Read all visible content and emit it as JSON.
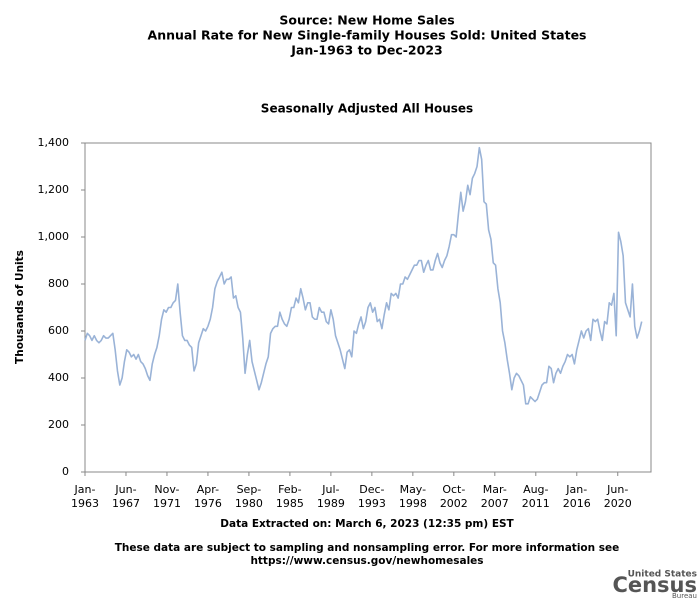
{
  "chart_data": {
    "type": "line",
    "title": [
      "Source: New Home Sales",
      "Annual Rate for New Single-family Houses Sold: United States",
      "Jan-1963 to Dec-2023"
    ],
    "subtitle": "Seasonally Adjusted All Houses",
    "y_label": "Thousands of Units",
    "note": "Data Extracted on: March 6, 2023 (12:35 pm) EST",
    "disclaimer": [
      "These data are subject to sampling and nonsampling error. For more information see",
      "https://www.census.gov/newhomesales"
    ],
    "logo": [
      "United States",
      "Census",
      "Bureau"
    ],
    "xlim": [
      "1963-01",
      "2024-01"
    ],
    "xticks": [
      {
        "value": "1963-01",
        "label": [
          "Jan-",
          "1963"
        ]
      },
      {
        "value": "1967-06",
        "label": [
          "Jun-",
          "1967"
        ]
      },
      {
        "value": "1971-11",
        "label": [
          "Nov-",
          "1971"
        ]
      },
      {
        "value": "1976-04",
        "label": [
          "Apr-",
          "1976"
        ]
      },
      {
        "value": "1980-09",
        "label": [
          "Sep-",
          "1980"
        ]
      },
      {
        "value": "1985-02",
        "label": [
          "Feb-",
          "1985"
        ]
      },
      {
        "value": "1989-07",
        "label": [
          "Jul-",
          "1989"
        ]
      },
      {
        "value": "1993-12",
        "label": [
          "Dec-",
          "1993"
        ]
      },
      {
        "value": "1998-05",
        "label": [
          "May-",
          "1998"
        ]
      },
      {
        "value": "2002-10",
        "label": [
          "Oct-",
          "2002"
        ]
      },
      {
        "value": "2007-03",
        "label": [
          "Mar-",
          "2007"
        ]
      },
      {
        "value": "2011-08",
        "label": [
          "Aug-",
          "2011"
        ]
      },
      {
        "value": "2016-01",
        "label": [
          "Jan-",
          "2016"
        ]
      },
      {
        "value": "2020-06",
        "label": [
          "Jun-",
          "2020"
        ]
      }
    ],
    "ylim": [
      0,
      1400
    ],
    "yticks": [
      0,
      200,
      400,
      600,
      800,
      {
        "value": 1000,
        "label": "1,000"
      },
      {
        "value": 1200,
        "label": "1,200"
      },
      {
        "value": 1400,
        "label": "1,400"
      }
    ],
    "grid": false,
    "series": [
      {
        "name": "Seasonally Adjusted All Houses",
        "color": "#9ab3d7",
        "x": [
          "1963-01",
          "1963-04",
          "1963-07",
          "1963-10",
          "1964-01",
          "1964-04",
          "1964-07",
          "1964-10",
          "1965-01",
          "1965-04",
          "1965-07",
          "1965-10",
          "1966-01",
          "1966-04",
          "1966-07",
          "1966-10",
          "1967-01",
          "1967-04",
          "1967-07",
          "1967-10",
          "1968-01",
          "1968-04",
          "1968-07",
          "1968-10",
          "1969-01",
          "1969-04",
          "1969-07",
          "1969-10",
          "1970-01",
          "1970-04",
          "1970-07",
          "1970-10",
          "1971-01",
          "1971-04",
          "1971-07",
          "1971-10",
          "1972-01",
          "1972-04",
          "1972-07",
          "1972-10",
          "1973-01",
          "1973-04",
          "1973-07",
          "1973-10",
          "1974-01",
          "1974-04",
          "1974-07",
          "1974-10",
          "1975-01",
          "1975-04",
          "1975-07",
          "1975-10",
          "1976-01",
          "1976-04",
          "1976-07",
          "1976-10",
          "1977-01",
          "1977-04",
          "1977-07",
          "1977-10",
          "1978-01",
          "1978-04",
          "1978-07",
          "1978-10",
          "1979-01",
          "1979-04",
          "1979-07",
          "1979-10",
          "1980-01",
          "1980-04",
          "1980-07",
          "1980-10",
          "1981-01",
          "1981-04",
          "1981-07",
          "1981-10",
          "1982-01",
          "1982-04",
          "1982-07",
          "1982-10",
          "1983-01",
          "1983-04",
          "1983-07",
          "1983-10",
          "1984-01",
          "1984-04",
          "1984-07",
          "1984-10",
          "1985-01",
          "1985-04",
          "1985-07",
          "1985-10",
          "1986-01",
          "1986-04",
          "1986-07",
          "1986-10",
          "1987-01",
          "1987-04",
          "1987-07",
          "1987-10",
          "1988-01",
          "1988-04",
          "1988-07",
          "1988-10",
          "1989-01",
          "1989-04",
          "1989-07",
          "1989-10",
          "1990-01",
          "1990-04",
          "1990-07",
          "1990-10",
          "1991-01",
          "1991-04",
          "1991-07",
          "1991-10",
          "1992-01",
          "1992-04",
          "1992-07",
          "1992-10",
          "1993-01",
          "1993-04",
          "1993-07",
          "1993-10",
          "1994-01",
          "1994-04",
          "1994-07",
          "1994-10",
          "1995-01",
          "1995-04",
          "1995-07",
          "1995-10",
          "1996-01",
          "1996-04",
          "1996-07",
          "1996-10",
          "1997-01",
          "1997-04",
          "1997-07",
          "1997-10",
          "1998-01",
          "1998-04",
          "1998-07",
          "1998-10",
          "1999-01",
          "1999-04",
          "1999-07",
          "1999-10",
          "2000-01",
          "2000-04",
          "2000-07",
          "2000-10",
          "2001-01",
          "2001-04",
          "2001-07",
          "2001-10",
          "2002-01",
          "2002-04",
          "2002-07",
          "2002-10",
          "2003-01",
          "2003-04",
          "2003-07",
          "2003-10",
          "2004-01",
          "2004-04",
          "2004-07",
          "2004-10",
          "2005-01",
          "2005-04",
          "2005-07",
          "2005-10",
          "2006-01",
          "2006-04",
          "2006-07",
          "2006-10",
          "2007-01",
          "2007-04",
          "2007-07",
          "2007-10",
          "2008-01",
          "2008-04",
          "2008-07",
          "2008-10",
          "2009-01",
          "2009-04",
          "2009-07",
          "2009-10",
          "2010-01",
          "2010-04",
          "2010-07",
          "2010-10",
          "2011-01",
          "2011-04",
          "2011-07",
          "2011-10",
          "2012-01",
          "2012-04",
          "2012-07",
          "2012-10",
          "2013-01",
          "2013-04",
          "2013-07",
          "2013-10",
          "2014-01",
          "2014-04",
          "2014-07",
          "2014-10",
          "2015-01",
          "2015-04",
          "2015-07",
          "2015-10",
          "2016-01",
          "2016-04",
          "2016-07",
          "2016-10",
          "2017-01",
          "2017-04",
          "2017-07",
          "2017-10",
          "2018-01",
          "2018-04",
          "2018-07",
          "2018-10",
          "2019-01",
          "2019-04",
          "2019-07",
          "2019-10",
          "2020-01",
          "2020-04",
          "2020-07",
          "2020-10",
          "2021-01",
          "2021-04",
          "2021-07",
          "2021-10",
          "2022-01",
          "2022-04",
          "2022-07",
          "2022-10",
          "2023-01"
        ],
        "values": [
          560,
          590,
          580,
          560,
          580,
          560,
          550,
          560,
          580,
          570,
          570,
          580,
          590,
          520,
          430,
          370,
          400,
          470,
          520,
          510,
          490,
          500,
          480,
          500,
          470,
          460,
          440,
          410,
          390,
          460,
          500,
          530,
          580,
          650,
          690,
          680,
          700,
          700,
          720,
          730,
          800,
          680,
          580,
          560,
          560,
          540,
          530,
          430,
          460,
          550,
          580,
          610,
          600,
          620,
          650,
          700,
          780,
          810,
          830,
          850,
          800,
          820,
          820,
          830,
          740,
          750,
          700,
          680,
          570,
          420,
          500,
          560,
          470,
          430,
          390,
          350,
          380,
          420,
          460,
          490,
          590,
          610,
          620,
          620,
          680,
          650,
          630,
          620,
          650,
          700,
          700,
          740,
          720,
          780,
          740,
          690,
          720,
          720,
          660,
          650,
          650,
          700,
          680,
          680,
          640,
          630,
          690,
          650,
          580,
          550,
          520,
          480,
          440,
          510,
          520,
          490,
          600,
          590,
          630,
          660,
          610,
          640,
          700,
          720,
          680,
          700,
          640,
          650,
          610,
          670,
          720,
          690,
          760,
          750,
          760,
          740,
          800,
          800,
          830,
          820,
          840,
          860,
          880,
          880,
          900,
          900,
          850,
          880,
          900,
          860,
          860,
          900,
          930,
          890,
          870,
          900,
          920,
          960,
          1010,
          1010,
          1000,
          1100,
          1190,
          1110,
          1150,
          1220,
          1180,
          1250,
          1270,
          1300,
          1380,
          1330,
          1150,
          1140,
          1030,
          990,
          890,
          880,
          780,
          720,
          600,
          550,
          480,
          420,
          350,
          400,
          420,
          410,
          390,
          370,
          290,
          290,
          320,
          310,
          300,
          310,
          340,
          370,
          380,
          380,
          450,
          440,
          380,
          420,
          440,
          420,
          450,
          470,
          500,
          490,
          500,
          460,
          520,
          560,
          600,
          570,
          600,
          610,
          560,
          650,
          640,
          650,
          600,
          560,
          640,
          630,
          720,
          710,
          760,
          580,
          1020,
          980,
          920,
          720,
          690,
          660,
          800,
          620,
          570,
          600,
          640
        ]
      }
    ]
  }
}
